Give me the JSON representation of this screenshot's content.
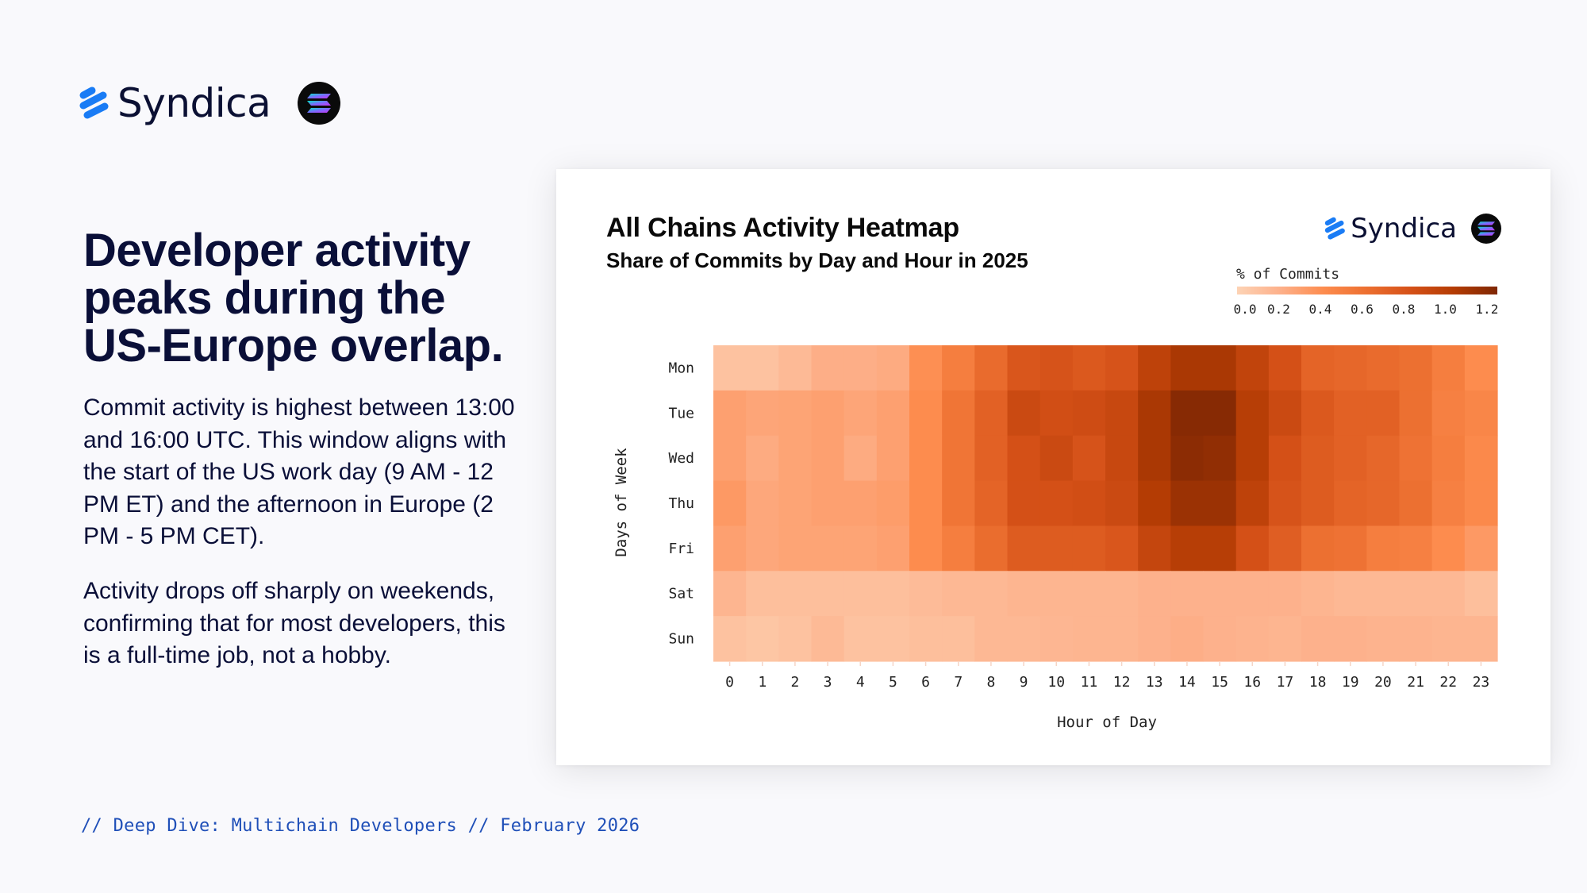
{
  "brand": {
    "name": "Syndica",
    "logo_icon": "syndica-logo-icon",
    "partner_icon": "solana-logo-icon",
    "accent": "#1a7cf5"
  },
  "headline": "Developer activity peaks during the US-Europe overlap.",
  "paragraphs": [
    "Commit activity is highest between 13:00 and 16:00 UTC. This window aligns with the start of the US work day (9 AM - 12 PM ET) and the afternoon in Europe (2 PM - 5 PM CET).",
    "Activity drops off sharply on weekends, confirming that for most developers, this is a full-time job, not a hobby."
  ],
  "footer": "// Deep Dive: Multichain Developers // February 2026",
  "card": {
    "brand_name": "Syndica"
  },
  "chart_data": {
    "type": "heatmap",
    "title": "All Chains Activity Heatmap",
    "subtitle": "Share of Commits by Day and Hour in 2025",
    "xlabel": "Hour of Day",
    "ylabel": "Days of Week",
    "x": [
      "0",
      "1",
      "2",
      "3",
      "4",
      "5",
      "6",
      "7",
      "8",
      "9",
      "10",
      "11",
      "12",
      "13",
      "14",
      "15",
      "16",
      "17",
      "18",
      "19",
      "20",
      "21",
      "22",
      "23"
    ],
    "y": [
      "Mon",
      "Tue",
      "Wed",
      "Thu",
      "Fri",
      "Sat",
      "Sun"
    ],
    "values": [
      [
        0.1,
        0.1,
        0.15,
        0.22,
        0.22,
        0.24,
        0.4,
        0.52,
        0.65,
        0.8,
        0.82,
        0.78,
        0.82,
        0.98,
        1.08,
        1.08,
        0.96,
        0.84,
        0.7,
        0.68,
        0.65,
        0.62,
        0.52,
        0.42
      ],
      [
        0.3,
        0.27,
        0.28,
        0.3,
        0.27,
        0.3,
        0.42,
        0.58,
        0.72,
        0.9,
        0.86,
        0.88,
        0.92,
        1.08,
        1.22,
        1.22,
        1.02,
        0.9,
        0.78,
        0.72,
        0.72,
        0.62,
        0.5,
        0.46
      ],
      [
        0.3,
        0.24,
        0.28,
        0.3,
        0.24,
        0.3,
        0.42,
        0.58,
        0.72,
        0.84,
        0.9,
        0.82,
        0.92,
        1.08,
        1.2,
        1.18,
        1.02,
        0.84,
        0.76,
        0.72,
        0.68,
        0.6,
        0.52,
        0.44
      ],
      [
        0.34,
        0.26,
        0.28,
        0.3,
        0.3,
        0.32,
        0.42,
        0.58,
        0.7,
        0.84,
        0.84,
        0.86,
        0.9,
        1.04,
        1.14,
        1.14,
        0.98,
        0.82,
        0.76,
        0.7,
        0.68,
        0.62,
        0.5,
        0.44
      ],
      [
        0.3,
        0.26,
        0.28,
        0.28,
        0.28,
        0.3,
        0.42,
        0.52,
        0.64,
        0.76,
        0.76,
        0.76,
        0.8,
        0.94,
        1.02,
        1.02,
        0.84,
        0.74,
        0.62,
        0.6,
        0.52,
        0.5,
        0.42,
        0.34
      ],
      [
        0.18,
        0.12,
        0.12,
        0.12,
        0.12,
        0.12,
        0.14,
        0.16,
        0.16,
        0.18,
        0.18,
        0.18,
        0.18,
        0.2,
        0.2,
        0.2,
        0.2,
        0.2,
        0.18,
        0.16,
        0.16,
        0.16,
        0.16,
        0.12
      ],
      [
        0.1,
        0.08,
        0.1,
        0.15,
        0.1,
        0.1,
        0.12,
        0.12,
        0.16,
        0.16,
        0.17,
        0.18,
        0.18,
        0.2,
        0.22,
        0.2,
        0.19,
        0.18,
        0.2,
        0.2,
        0.19,
        0.19,
        0.18,
        0.18
      ]
    ],
    "colorbar": {
      "label": "% of Commits",
      "range": [
        0.0,
        1.25
      ],
      "ticks": [
        "0.0",
        "0.2",
        "0.4",
        "0.6",
        "0.8",
        "1.0",
        "1.2"
      ],
      "tick_values": [
        0.0,
        0.2,
        0.4,
        0.6,
        0.8,
        1.0,
        1.2
      ],
      "colormap": "Oranges",
      "stops": [
        "#fdd3b5",
        "#fdb08a",
        "#fd8c4e",
        "#ec6f30",
        "#d55118",
        "#b43c04",
        "#7f2704"
      ]
    },
    "legend_position": "top-right",
    "grid": false
  }
}
